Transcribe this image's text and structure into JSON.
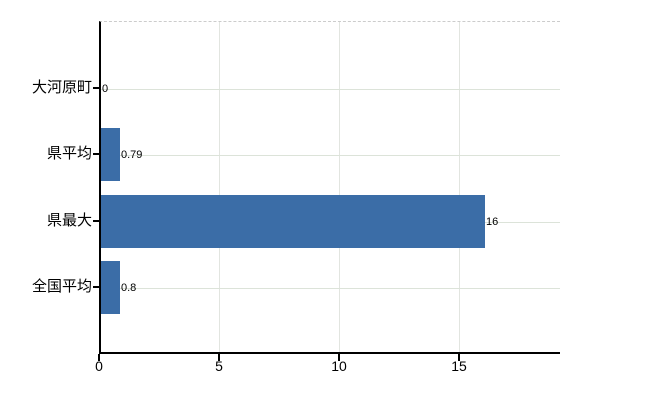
{
  "chart_data": {
    "type": "bar",
    "orientation": "horizontal",
    "title": "",
    "xlabel": "",
    "ylabel": "",
    "categories": [
      "大河原町",
      "県平均",
      "県最大",
      "全国平均"
    ],
    "values": [
      0,
      0.79,
      16,
      0.8
    ],
    "value_labels": [
      "0",
      "0.79",
      "16",
      "0.8"
    ],
    "x_ticks": [
      0,
      5,
      10,
      15
    ],
    "x_tick_labels": [
      "0",
      "5",
      "10",
      "15"
    ],
    "xlim": [
      0,
      19.2
    ],
    "grid": true,
    "legend": false,
    "colors": {
      "bar": "#3b6da7",
      "axis": "#000000",
      "h_gridline": "#dce3d9",
      "v_gridline": "#e2e5e0",
      "top_border": "#cccccc",
      "text": "#000000",
      "background": "#ffffff"
    }
  }
}
